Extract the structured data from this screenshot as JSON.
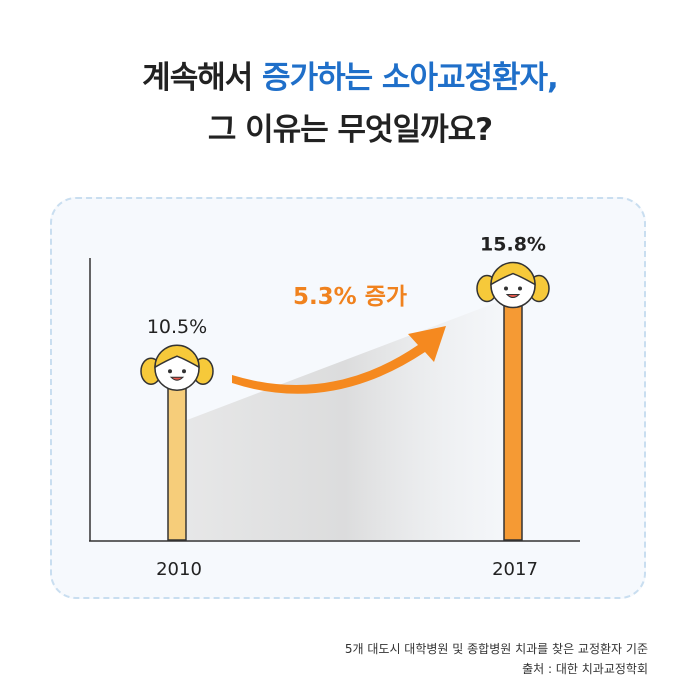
{
  "title": {
    "line1_prefix": "계속해서 ",
    "line1_highlight": "증가하는 소아교정환자,",
    "line2": "그 이유는 무엇일까요?"
  },
  "colors": {
    "title_text": "#222222",
    "title_highlight": "#1f6fc9",
    "bar_2010": "#f6cd7a",
    "bar_2017": "#f59a34",
    "arrow": "#f5891f",
    "annotation": "#f0821e",
    "hair": "#f6c93a"
  },
  "chart_data": {
    "type": "bar",
    "categories": [
      "2010",
      "2017"
    ],
    "values": [
      10.5,
      15.8
    ],
    "value_labels": [
      "10.5%",
      "15.8%"
    ],
    "annotation": "5.3% 증가",
    "grid": false
  },
  "footnote": {
    "line1": "5개 대도시 대학병원 및 종합병원 치과를 찾은 교정환자 기준",
    "line2": "출처 : 대한 치과교정학회"
  }
}
